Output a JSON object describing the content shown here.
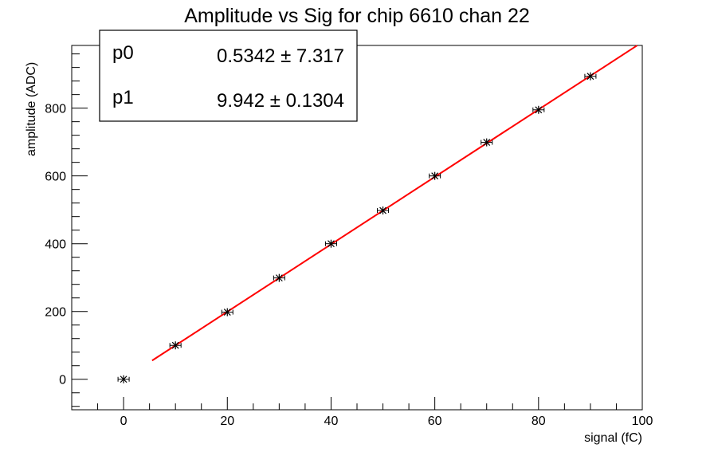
{
  "chart_data": {
    "type": "scatter",
    "title": "Amplitude vs Sig for chip 6610 chan 22",
    "xlabel": "signal (fC)",
    "ylabel": "amplitude (ADC)",
    "xlim": [
      -10,
      100
    ],
    "ylim": [
      -90,
      985
    ],
    "x_ticks": [
      0,
      20,
      40,
      60,
      80,
      100
    ],
    "y_ticks": [
      0,
      200,
      400,
      600,
      800
    ],
    "grid": false,
    "points": [
      {
        "x": 0,
        "y": 0
      },
      {
        "x": 10,
        "y": 100
      },
      {
        "x": 20,
        "y": 198
      },
      {
        "x": 30,
        "y": 299
      },
      {
        "x": 40,
        "y": 400
      },
      {
        "x": 50,
        "y": 498
      },
      {
        "x": 60,
        "y": 600
      },
      {
        "x": 70,
        "y": 699
      },
      {
        "x": 80,
        "y": 795
      },
      {
        "x": 90,
        "y": 894
      }
    ],
    "fit": {
      "type": "linear",
      "p0": 0.5342,
      "p1": 9.942,
      "x_range": [
        5.5,
        99
      ],
      "color": "#ff0000"
    },
    "stats": {
      "rows": [
        {
          "name": "p0",
          "value": "0.5342 ± 7.317"
        },
        {
          "name": "p1",
          "value": "9.942 ± 0.1304"
        }
      ],
      "placement": "top-left"
    },
    "colors": {
      "markers": "#000000",
      "fit_line": "#ff0000",
      "frame": "#000000"
    }
  }
}
